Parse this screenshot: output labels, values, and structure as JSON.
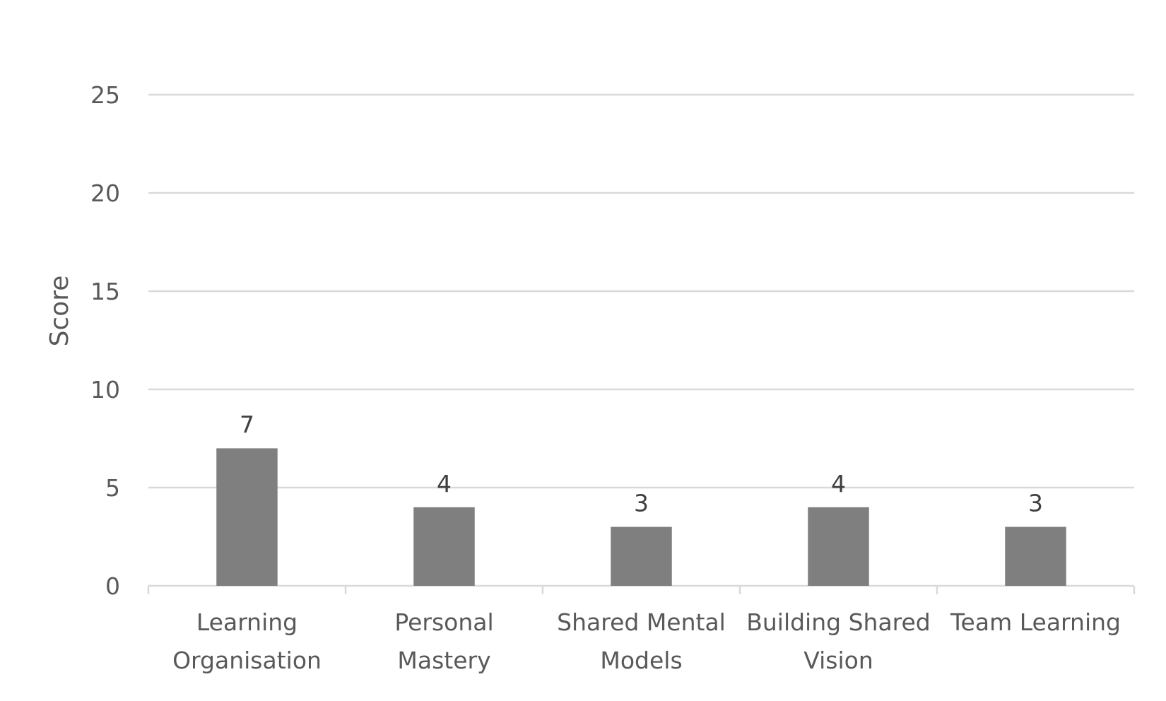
{
  "chart_data": {
    "type": "bar",
    "categories": [
      [
        "Learning",
        "Organisation"
      ],
      [
        "Personal",
        "Mastery"
      ],
      [
        "Shared Mental",
        "Models"
      ],
      [
        "Building Shared",
        "Vision"
      ],
      [
        "Team Learning"
      ]
    ],
    "values": [
      7,
      4,
      3,
      4,
      3
    ],
    "data_labels": [
      "7",
      "4",
      "3",
      "4",
      "3"
    ],
    "ylabel": "Score",
    "ylim": [
      0,
      25
    ],
    "yticks": [
      0,
      5,
      10,
      15,
      20,
      25
    ],
    "ytick_labels": [
      "0",
      "5",
      "10",
      "15",
      "20",
      "25"
    ],
    "grid": true,
    "legend": "none",
    "bar_color": "#7f7f7f"
  }
}
